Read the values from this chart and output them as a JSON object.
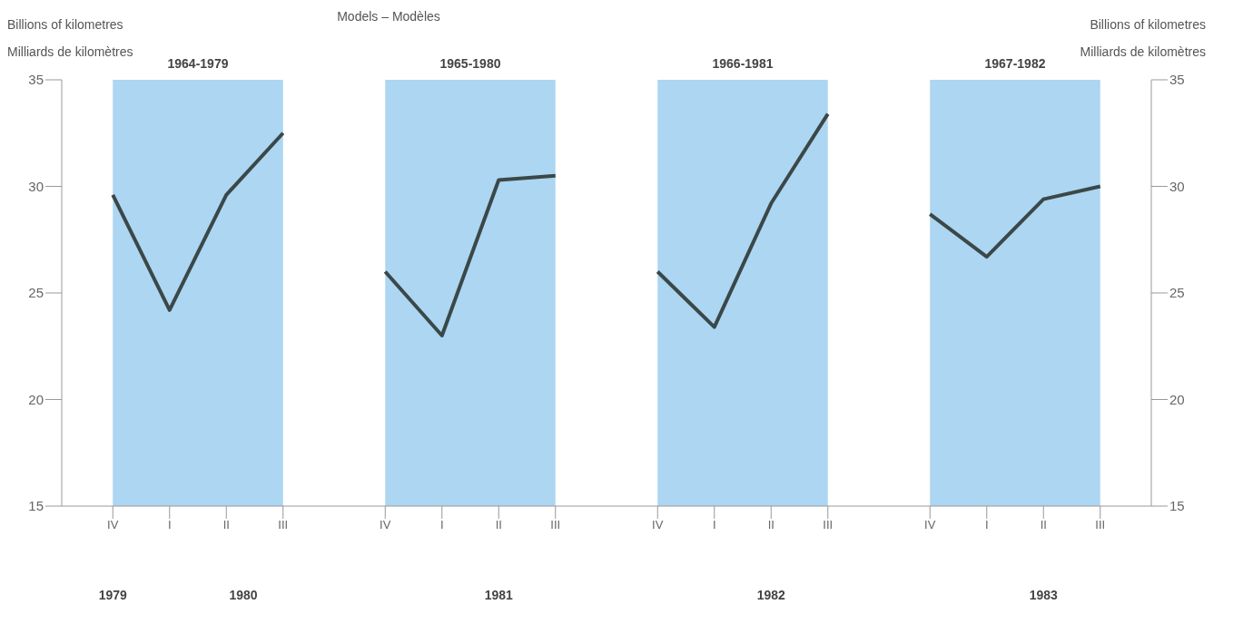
{
  "chart_data": [
    {
      "type": "line",
      "title": "1964-1979",
      "ylabel": "Billions of kilometres\nMilliards de kilomètres",
      "categories": [
        "IV",
        "I",
        "II",
        "III"
      ],
      "ylim": [
        15,
        35
      ],
      "yticks": [
        15,
        20,
        25,
        30,
        35
      ],
      "marker": "none",
      "line_style": "solid",
      "series": [
        {
          "color": "#3b4848",
          "values": [
            29.6,
            24.2,
            29.6,
            32.5
          ]
        }
      ],
      "bands": [
        {
          "axis": "x",
          "from": "IV",
          "to": "III",
          "color": "#acd6f2"
        }
      ],
      "annotations": [
        "Models – Modèles",
        "1979",
        "1980"
      ]
    },
    {
      "type": "line",
      "title": "1965-1980",
      "categories": [
        "IV",
        "I",
        "II",
        "III"
      ],
      "ylim": [
        15,
        35
      ],
      "yticks": [
        15,
        20,
        25,
        30,
        35
      ],
      "tick_labels": "x",
      "marker": "none",
      "line_style": "solid",
      "series": [
        {
          "color": "#3b4848",
          "values": [
            26.0,
            23.0,
            30.3,
            30.5
          ]
        }
      ],
      "bands": [
        {
          "axis": "x",
          "from": "IV",
          "to": "III",
          "color": "#acd6f2"
        }
      ],
      "annotations": [
        "1981"
      ]
    },
    {
      "type": "line",
      "title": "1966-1981",
      "categories": [
        "IV",
        "I",
        "II",
        "III"
      ],
      "ylim": [
        15,
        35
      ],
      "yticks": [
        15,
        20,
        25,
        30,
        35
      ],
      "tick_labels": "x",
      "marker": "none",
      "line_style": "solid",
      "series": [
        {
          "color": "#3b4848",
          "values": [
            26.0,
            23.4,
            29.2,
            33.4
          ]
        }
      ],
      "bands": [
        {
          "axis": "x",
          "from": "IV",
          "to": "III",
          "color": "#acd6f2"
        }
      ],
      "annotations": [
        "1982"
      ]
    },
    {
      "type": "line",
      "title": "1967-1982",
      "y2label": "Billions of kilometres\nMilliards de kilomètres",
      "categories": [
        "IV",
        "I",
        "II",
        "III"
      ],
      "y2lim": [
        15,
        35
      ],
      "y2ticks": [
        15,
        20,
        25,
        30,
        35
      ],
      "marker": "none",
      "line_style": "solid",
      "series": [
        {
          "color": "#3b4848",
          "axis": "y2",
          "values": [
            28.7,
            26.7,
            29.4,
            30.0
          ]
        }
      ],
      "bands": [
        {
          "axis": "x",
          "from": "IV",
          "to": "III",
          "color": "#acd6f2"
        }
      ],
      "annotations": [
        "1983"
      ]
    }
  ]
}
